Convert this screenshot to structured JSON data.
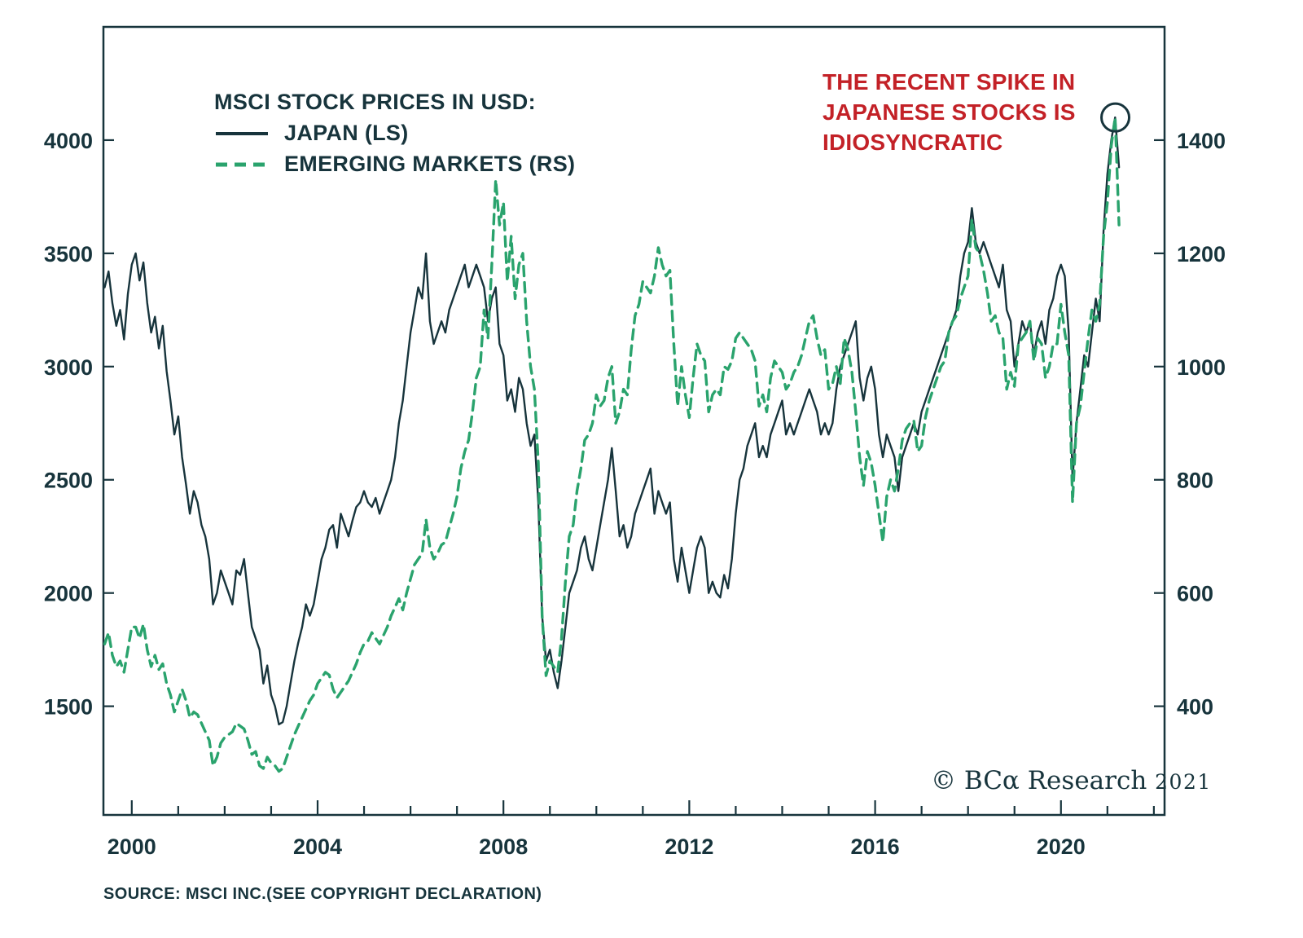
{
  "annotation": {
    "lines": [
      "THE RECENT SPIKE IN",
      "JAPANESE STOCKS IS",
      "IDIOSYNCRATIC"
    ],
    "color": "#c32127"
  },
  "watermark": {
    "text": "© BCα Research",
    "year": "2021"
  },
  "source": {
    "text": "SOURCE: MSCI INC.(SEE COPYRIGHT DECLARATION)"
  },
  "chart_data": {
    "type": "line",
    "title": "MSCI STOCK PRICES IN USD:",
    "x_start": 1999.4167,
    "points_per_year": 12,
    "x_range": [
      1999.39,
      2022.23
    ],
    "x_tick_years": [
      2000,
      2022
    ],
    "x_labeled_ticks": [
      2000,
      2004,
      2008,
      2012,
      2016,
      2020
    ],
    "grid": false,
    "legend_position": "top-left",
    "left_axis": {
      "range": [
        1020,
        4500
      ],
      "ticks": [
        1500,
        2000,
        2500,
        3000,
        3500,
        4000
      ]
    },
    "right_axis": {
      "range": [
        208,
        1600
      ],
      "ticks": [
        400,
        600,
        800,
        1000,
        1200,
        1400
      ]
    },
    "series": [
      {
        "name": "JAPAN (LS)",
        "data_name": "japan-line",
        "axis": "left",
        "style": "solid",
        "dash": null,
        "color": "#17343c",
        "width": 2.4,
        "values": [
          3350,
          3420,
          3280,
          3180,
          3250,
          3120,
          3320,
          3450,
          3500,
          3380,
          3460,
          3280,
          3150,
          3220,
          3080,
          3180,
          2980,
          2850,
          2700,
          2780,
          2600,
          2480,
          2350,
          2450,
          2400,
          2300,
          2250,
          2150,
          1950,
          2000,
          2100,
          2050,
          2000,
          1950,
          2100,
          2080,
          2150,
          2000,
          1850,
          1800,
          1750,
          1600,
          1680,
          1550,
          1500,
          1420,
          1430,
          1500,
          1600,
          1700,
          1780,
          1850,
          1950,
          1900,
          1950,
          2050,
          2150,
          2200,
          2280,
          2300,
          2200,
          2350,
          2300,
          2250,
          2320,
          2380,
          2400,
          2450,
          2400,
          2380,
          2420,
          2350,
          2400,
          2450,
          2500,
          2600,
          2750,
          2850,
          3000,
          3150,
          3250,
          3350,
          3300,
          3500,
          3200,
          3100,
          3150,
          3200,
          3150,
          3250,
          3300,
          3350,
          3400,
          3450,
          3350,
          3400,
          3450,
          3400,
          3350,
          3200,
          3300,
          3350,
          3100,
          3050,
          2850,
          2900,
          2800,
          2950,
          2900,
          2750,
          2650,
          2700,
          2400,
          1900,
          1700,
          1750,
          1650,
          1580,
          1700,
          1850,
          2000,
          2050,
          2100,
          2200,
          2250,
          2150,
          2100,
          2200,
          2300,
          2400,
          2500,
          2640,
          2450,
          2250,
          2300,
          2200,
          2250,
          2350,
          2400,
          2450,
          2500,
          2550,
          2350,
          2450,
          2400,
          2350,
          2400,
          2150,
          2050,
          2200,
          2100,
          2000,
          2100,
          2200,
          2250,
          2200,
          2000,
          2050,
          2000,
          1980,
          2080,
          2020,
          2150,
          2350,
          2500,
          2550,
          2650,
          2700,
          2750,
          2600,
          2650,
          2600,
          2700,
          2750,
          2800,
          2850,
          2700,
          2750,
          2700,
          2750,
          2800,
          2850,
          2900,
          2850,
          2800,
          2700,
          2750,
          2700,
          2750,
          2900,
          3000,
          3050,
          3100,
          3150,
          3200,
          2950,
          2850,
          2950,
          3000,
          2900,
          2700,
          2600,
          2700,
          2650,
          2600,
          2450,
          2600,
          2650,
          2700,
          2750,
          2700,
          2800,
          2850,
          2900,
          2950,
          3000,
          3050,
          3100,
          3150,
          3200,
          3250,
          3400,
          3500,
          3550,
          3700,
          3550,
          3500,
          3550,
          3500,
          3450,
          3400,
          3350,
          3450,
          3250,
          3200,
          3000,
          3100,
          3200,
          3150,
          3200,
          3050,
          3150,
          3200,
          3100,
          3250,
          3300,
          3400,
          3450,
          3400,
          3150,
          2500,
          2750,
          2900,
          3050,
          3000,
          3150,
          3300,
          3200,
          3600,
          3850,
          4000,
          4100,
          3880
        ]
      },
      {
        "name": "EMERGING MARKETS (RS)",
        "data_name": "emerging-markets-line",
        "axis": "right",
        "style": "dashed",
        "dash": "12 8",
        "color": "#2aa36d",
        "width": 3.4,
        "values": [
          510,
          530,
          490,
          470,
          480,
          460,
          500,
          540,
          540,
          520,
          545,
          500,
          470,
          490,
          465,
          475,
          440,
          420,
          390,
          410,
          430,
          410,
          380,
          390,
          385,
          370,
          355,
          340,
          295,
          310,
          335,
          345,
          350,
          355,
          370,
          365,
          360,
          340,
          315,
          320,
          295,
          290,
          310,
          300,
          295,
          285,
          290,
          310,
          330,
          350,
          365,
          380,
          395,
          410,
          420,
          440,
          450,
          460,
          455,
          430,
          415,
          425,
          435,
          445,
          460,
          475,
          495,
          510,
          515,
          530,
          520,
          510,
          525,
          540,
          560,
          575,
          590,
          570,
          600,
          625,
          650,
          660,
          670,
          730,
          680,
          660,
          670,
          685,
          690,
          715,
          740,
          770,
          820,
          850,
          870,
          920,
          980,
          1000,
          1100,
          1050,
          1180,
          1330,
          1250,
          1290,
          1150,
          1230,
          1120,
          1180,
          1200,
          1080,
          1000,
          960,
          830,
          560,
          454,
          480,
          470,
          460,
          520,
          620,
          700,
          720,
          780,
          820,
          870,
          880,
          900,
          950,
          930,
          940,
          980,
          1000,
          900,
          920,
          960,
          950,
          1030,
          1090,
          1110,
          1150,
          1140,
          1130,
          1160,
          1210,
          1180,
          1160,
          1170,
          1040,
          930,
          1000,
          950,
          910,
          980,
          1040,
          1020,
          1010,
          920,
          950,
          960,
          950,
          1000,
          995,
          1010,
          1050,
          1060,
          1050,
          1040,
          1030,
          1010,
          930,
          950,
          920,
          980,
          1010,
          1000,
          990,
          960,
          970,
          990,
          1000,
          1020,
          1050,
          1080,
          1090,
          1050,
          1020,
          1030,
          960,
          970,
          1000,
          970,
          1050,
          1030,
          990,
          920,
          840,
          790,
          850,
          830,
          790,
          740,
          690,
          770,
          800,
          780,
          820,
          870,
          890,
          900,
          905,
          850,
          860,
          910,
          940,
          960,
          980,
          1000,
          1010,
          1060,
          1080,
          1090,
          1120,
          1140,
          1160,
          1260,
          1210,
          1200,
          1170,
          1130,
          1080,
          1090,
          1060,
          1050,
          960,
          990,
          965,
          1040,
          1050,
          1060,
          1080,
          1010,
          1050,
          1040,
          980,
          1000,
          1040,
          1040,
          1110,
          1060,
          1020,
          760,
          900,
          930,
          990,
          1050,
          1100,
          1080,
          1110,
          1230,
          1290,
          1390,
          1440,
          1250
        ]
      }
    ],
    "highlight_circle": {
      "x": 2021.17,
      "value": 4100,
      "radius": 17,
      "axis": "left"
    }
  }
}
